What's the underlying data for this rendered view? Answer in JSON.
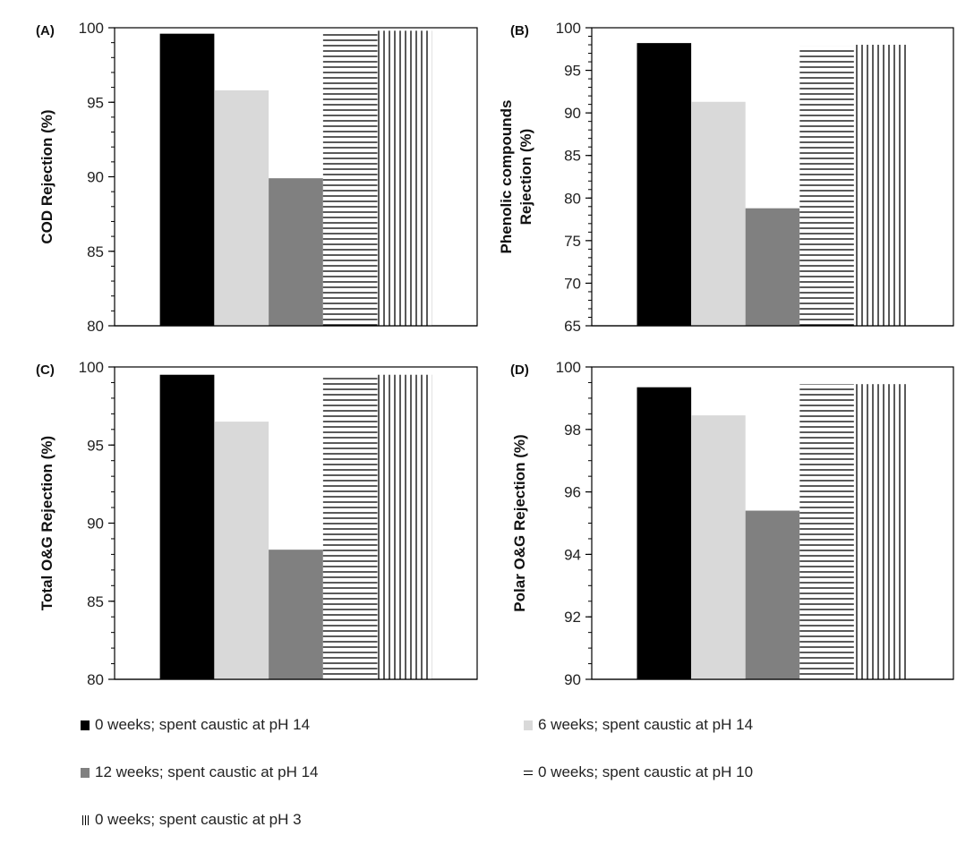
{
  "chart_data": [
    {
      "type": "bar",
      "panel_label": "(A)",
      "ylabel": "COD Rejection (%)",
      "ylim": [
        80,
        100
      ],
      "yticks": [
        80,
        85,
        90,
        95,
        100
      ],
      "minor_step": 1,
      "series": [
        {
          "name": "0 weeks; spent caustic at pH 14",
          "values": [
            99.6
          ]
        },
        {
          "name": "6 weeks; spent caustic at pH 14",
          "values": [
            95.8
          ]
        },
        {
          "name": "12 weeks; spent caustic at pH 14",
          "values": [
            89.9
          ]
        },
        {
          "name": "0 weeks; spent caustic at pH 10",
          "values": [
            99.6
          ]
        },
        {
          "name": "0 weeks; spent caustic at pH 3",
          "values": [
            99.8
          ]
        }
      ]
    },
    {
      "type": "bar",
      "panel_label": "(B)",
      "ylabel": "Phenolic compounds Rejection (%)",
      "ylabel_lines": [
        "Phenolic compounds",
        "Rejection (%)"
      ],
      "ylim": [
        65,
        100
      ],
      "yticks": [
        65,
        70,
        75,
        80,
        85,
        90,
        95,
        100
      ],
      "minor_step": 1,
      "series": [
        {
          "name": "0 weeks; spent caustic at pH 14",
          "values": [
            98.2
          ]
        },
        {
          "name": "6 weeks; spent caustic at pH 14",
          "values": [
            91.3
          ]
        },
        {
          "name": "12 weeks; spent caustic at pH 14",
          "values": [
            78.8
          ]
        },
        {
          "name": "0 weeks; spent caustic at pH 10",
          "values": [
            97.8
          ]
        },
        {
          "name": "0 weeks; spent caustic at pH 3",
          "values": [
            98.0
          ]
        }
      ]
    },
    {
      "type": "bar",
      "panel_label": "(C)",
      "ylabel": "Total O&G Rejection (%)",
      "ylim": [
        80,
        100
      ],
      "yticks": [
        80,
        85,
        90,
        95,
        100
      ],
      "minor_step": 1,
      "series": [
        {
          "name": "0 weeks; spent caustic at pH 14",
          "values": [
            99.5
          ]
        },
        {
          "name": "6 weeks; spent caustic at pH 14",
          "values": [
            96.5
          ]
        },
        {
          "name": "12 weeks; spent caustic at pH 14",
          "values": [
            88.3
          ]
        },
        {
          "name": "0 weeks; spent caustic at pH 10",
          "values": [
            99.3
          ]
        },
        {
          "name": "0 weeks; spent caustic at pH 3",
          "values": [
            99.5
          ]
        }
      ]
    },
    {
      "type": "bar",
      "panel_label": "(D)",
      "ylabel": "Polar O&G Rejection (%)",
      "ylim": [
        90,
        100
      ],
      "yticks": [
        90,
        92,
        94,
        96,
        98,
        100
      ],
      "minor_step": 0.5,
      "series": [
        {
          "name": "0 weeks; spent caustic at pH 14",
          "values": [
            99.35
          ]
        },
        {
          "name": "6 weeks; spent caustic at pH 14",
          "values": [
            98.45
          ]
        },
        {
          "name": "12 weeks; spent caustic at pH 14",
          "values": [
            95.4
          ]
        },
        {
          "name": "0 weeks; spent caustic at pH 10",
          "values": [
            99.45
          ]
        },
        {
          "name": "0 weeks; spent caustic at pH 3",
          "values": [
            99.45
          ]
        }
      ]
    }
  ],
  "legend": {
    "placement": "bottom",
    "items": [
      {
        "label": "0 weeks; spent caustic at pH 14",
        "pattern": "solid",
        "color": "#000000"
      },
      {
        "label": "6 weeks; spent caustic at pH 14",
        "pattern": "solid",
        "color": "#d9d9d9"
      },
      {
        "label": "12 weeks; spent caustic at pH 14",
        "pattern": "solid",
        "color": "#808080"
      },
      {
        "label": "0 weeks; spent caustic at pH 10",
        "pattern": "horizontal-lines",
        "color": "#000000"
      },
      {
        "label": "0 weeks; spent caustic at pH 3",
        "pattern": "vertical-lines",
        "color": "#000000"
      }
    ]
  }
}
